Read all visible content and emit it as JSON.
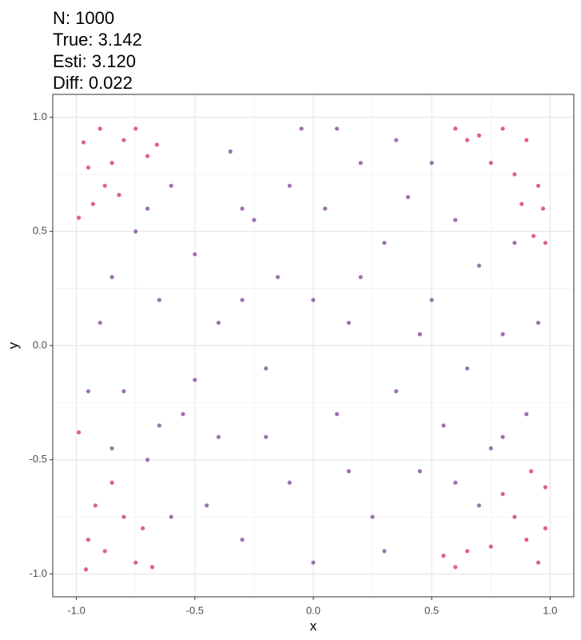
{
  "chart_data": {
    "type": "scatter",
    "title_lines": [
      "N: 1000",
      "True: 3.142",
      "Esti: 3.120",
      "Diff: 0.022"
    ],
    "x_label": "x",
    "y_label": "y",
    "xlim": [
      -1.1,
      1.1
    ],
    "ylim": [
      -1.1,
      1.1
    ],
    "xticks": [
      {
        "value": -1,
        "label": "-1.0"
      },
      {
        "value": -0.5,
        "label": "-0.5"
      },
      {
        "value": 0,
        "label": "0.0"
      },
      {
        "value": 0.5,
        "label": "0.5"
      },
      {
        "value": 1,
        "label": "1.0"
      }
    ],
    "yticks": [
      {
        "value": -1,
        "label": "-1.0"
      },
      {
        "value": -0.5,
        "label": "-0.5"
      },
      {
        "value": 0,
        "label": "0.0"
      },
      {
        "value": 0.5,
        "label": "0.5"
      },
      {
        "value": 1,
        "label": "1.0"
      }
    ],
    "xminor": [
      -0.75,
      -0.25,
      0.25,
      0.75
    ],
    "yminor": [
      -0.75,
      -0.25,
      0.25,
      0.75
    ],
    "grid": true,
    "series": [
      {
        "color": "#d9476e",
        "x": [
          -0.97,
          -0.9,
          -0.85,
          -0.93,
          -0.8,
          -0.7,
          -0.75,
          -0.66,
          -0.88,
          -0.99,
          -0.95,
          -0.82,
          0.8,
          0.9,
          0.7,
          0.85,
          0.95,
          0.75,
          0.6,
          0.98,
          0.93,
          0.88,
          0.65,
          0.97,
          -0.95,
          -0.88,
          -0.8,
          -0.75,
          -0.92,
          -0.68,
          -0.85,
          -0.99,
          -0.72,
          -0.96,
          0.9,
          0.8,
          0.85,
          0.98,
          0.65,
          0.55,
          0.95,
          0.75,
          0.92,
          0.6,
          0.98
        ],
        "y": [
          0.89,
          0.95,
          0.8,
          0.62,
          0.9,
          0.83,
          0.95,
          0.88,
          0.7,
          0.56,
          0.78,
          0.66,
          0.95,
          0.9,
          0.92,
          0.75,
          0.7,
          0.8,
          0.95,
          0.45,
          0.48,
          0.62,
          0.9,
          0.6,
          -0.85,
          -0.9,
          -0.75,
          -0.95,
          -0.7,
          -0.97,
          -0.6,
          -0.38,
          -0.8,
          -0.98,
          -0.85,
          -0.65,
          -0.75,
          -0.62,
          -0.9,
          -0.92,
          -0.95,
          -0.88,
          -0.55,
          -0.97,
          -0.8
        ]
      },
      {
        "color": "#8b5a9f",
        "x": [
          -0.9,
          -0.85,
          -0.8,
          -0.75,
          -0.7,
          -0.65,
          -0.6,
          -0.55,
          -0.5,
          -0.45,
          -0.4,
          -0.35,
          -0.3,
          -0.25,
          -0.2,
          -0.15,
          -0.1,
          -0.05,
          0,
          0.05,
          0.1,
          0.15,
          0.2,
          0.25,
          0.3,
          0.35,
          0.4,
          0.45,
          0.5,
          0.55,
          0.6,
          0.65,
          0.7,
          0.75,
          0.8,
          0.85,
          0.9,
          0.95,
          -0.95,
          -0.6,
          -0.4,
          -0.3,
          0.1,
          0.3,
          0.5,
          0.7,
          -0.7,
          -0.2,
          0.2,
          0.45,
          -0.5,
          -0.1,
          0.6,
          -0.85,
          0,
          0.35,
          -0.3,
          0.8,
          -0.65,
          0.15
        ],
        "y": [
          0.1,
          0.3,
          -0.2,
          0.5,
          -0.5,
          0.2,
          0.7,
          -0.3,
          0.4,
          -0.7,
          0.1,
          0.85,
          -0.85,
          0.55,
          -0.1,
          0.3,
          -0.6,
          0.95,
          -0.95,
          0.6,
          -0.3,
          0.1,
          0.8,
          -0.75,
          0.45,
          -0.2,
          0.65,
          -0.55,
          0.2,
          -0.35,
          0.55,
          -0.1,
          0.35,
          -0.45,
          0.05,
          0.45,
          -0.3,
          0.1,
          -0.2,
          -0.75,
          -0.4,
          0.2,
          0.95,
          -0.9,
          0.8,
          -0.7,
          0.6,
          -0.4,
          0.3,
          0.05,
          -0.15,
          0.7,
          -0.6,
          -0.45,
          0.2,
          0.9,
          0.6,
          -0.4,
          -0.35,
          -0.55
        ]
      }
    ]
  }
}
